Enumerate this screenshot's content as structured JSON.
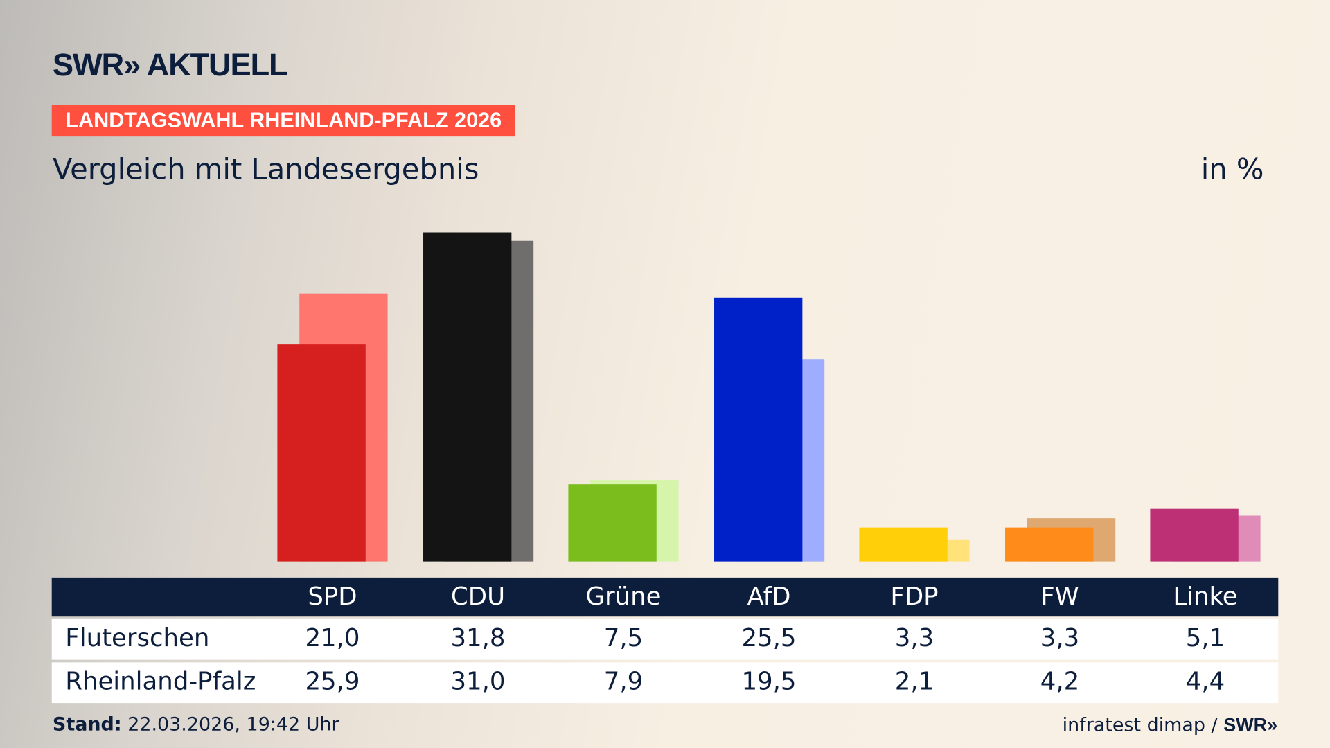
{
  "brand": {
    "logo": "SWR» AKTUELL",
    "footer_logo": "SWR»"
  },
  "badge": "LANDTAGSWAHL RHEINLAND-PFALZ 2026",
  "subtitle": "Vergleich mit Landesergebnis",
  "unit": "in %",
  "footer": {
    "stand_label": "Stand:",
    "stand_value": "22.03.2026, 19:42 Uhr",
    "source": "infratest dimap /"
  },
  "chart_data": {
    "type": "bar",
    "categories": [
      "SPD",
      "CDU",
      "Grüne",
      "AfD",
      "FDP",
      "FW",
      "Linke"
    ],
    "series": [
      {
        "name": "Fluterschen",
        "values": [
          21.0,
          31.8,
          7.5,
          25.5,
          3.3,
          3.3,
          5.1
        ],
        "labels": [
          "21,0",
          "31,8",
          "7,5",
          "25,5",
          "3,3",
          "3,3",
          "5,1"
        ],
        "colors": [
          "#d61f1f",
          "#141414",
          "#7abd1d",
          "#0021c8",
          "#ffcf0a",
          "#ff8b1a",
          "#bd3075"
        ]
      },
      {
        "name": "Rheinland-Pfalz",
        "values": [
          25.9,
          31.0,
          7.9,
          19.5,
          2.1,
          4.2,
          4.4
        ],
        "labels": [
          "25,9",
          "31,0",
          "7,9",
          "19,5",
          "2,1",
          "4,2",
          "4,4"
        ],
        "colors": [
          "#ff766e",
          "#706e6c",
          "#d6f5aa",
          "#9eadff",
          "#ffe27a",
          "#dfa870",
          "#e08cb8"
        ]
      }
    ],
    "grid": false,
    "legend": "table-below"
  }
}
